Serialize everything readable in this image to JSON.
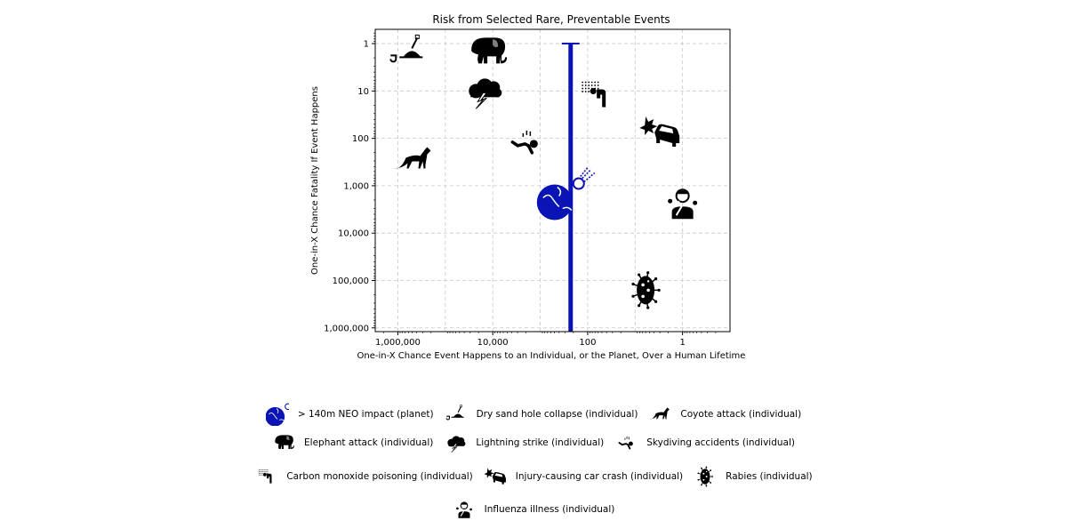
{
  "chart_data": {
    "type": "scatter",
    "title": "Risk from Selected Rare, Preventable Events",
    "xlabel": "One-in-X Chance Event Happens to an Individual, or the Planet, Over a Human Lifetime",
    "ylabel": "One-in-X Chance Fatality If Event Happens",
    "xscale": "log",
    "yscale": "log",
    "x_inverted": true,
    "y_inverted": true,
    "xlim": [
      3000000,
      0.1
    ],
    "ylim": [
      0.5,
      1200000
    ],
    "grid": true,
    "xticks": [
      1000000,
      10000,
      100,
      1
    ],
    "xtick_labels": [
      "1,000,000",
      "10,000",
      "100",
      "1"
    ],
    "yticks": [
      1,
      10,
      100,
      1000,
      10000,
      100000,
      1000000
    ],
    "ytick_labels": [
      "1",
      "10",
      "100",
      "1,000",
      "10,000",
      "100,000",
      "1,000,000"
    ],
    "legend_placement": "below",
    "series": [
      {
        "name": "> 140m NEO impact (planet)",
        "icon": "earth-meteor-icon",
        "x": 400,
        "y": 1800,
        "y_err": [
          1,
          1000000
        ],
        "color": "#0a14b4"
      },
      {
        "name": "Dry sand hole collapse (individual)",
        "icon": "sand-hole-icon",
        "x": 600000,
        "y": 1.5,
        "color": "#000000"
      },
      {
        "name": "Coyote attack (individual)",
        "icon": "coyote-icon",
        "x": 480000,
        "y": 280,
        "color": "#000000"
      },
      {
        "name": "Elephant attack (individual)",
        "icon": "elephant-icon",
        "x": 13000,
        "y": 1.5,
        "color": "#000000"
      },
      {
        "name": "Lightning strike (individual)",
        "icon": "lightning-icon",
        "x": 16000,
        "y": 10,
        "color": "#000000"
      },
      {
        "name": "Skydiving accidents (individual)",
        "icon": "skydiver-icon",
        "x": 2100,
        "y": 120,
        "color": "#000000"
      },
      {
        "name": "Carbon monoxide poisoning (individual)",
        "icon": "carbon-monoxide-icon",
        "x": 70,
        "y": 12,
        "color": "#000000"
      },
      {
        "name": "Injury-causing car crash (individual)",
        "icon": "car-crash-icon",
        "x": 3,
        "y": 75,
        "color": "#000000"
      },
      {
        "name": "Rabies (individual)",
        "icon": "virus-icon",
        "x": 6,
        "y": 160000,
        "color": "#000000"
      },
      {
        "name": "Influenza illness (individual)",
        "icon": "influenza-icon",
        "x": 1,
        "y": 2300,
        "color": "#000000"
      }
    ]
  }
}
